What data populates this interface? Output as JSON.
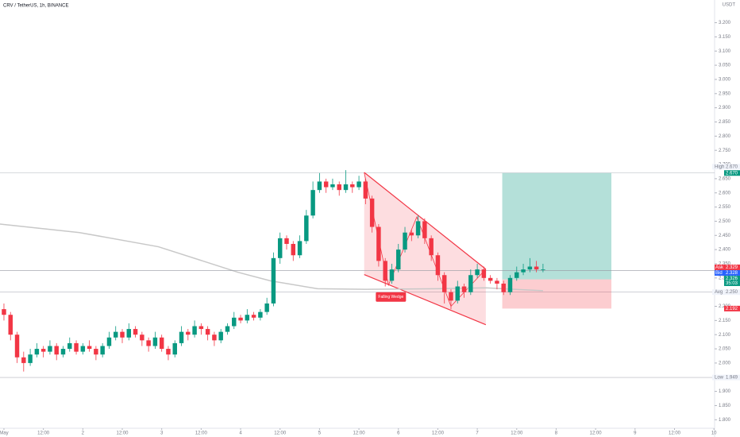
{
  "chart_data": {
    "type": "candlestick",
    "title": "CRV / TetherUS, 1h, BINANCE",
    "currency": "USDT",
    "xlim": [
      -0.6,
      108.1
    ],
    "ylim": [
      1.77,
      3.28
    ],
    "xticks": [
      {
        "value": 0,
        "label": "May"
      },
      {
        "value": 6,
        "label": "12:00"
      },
      {
        "value": 12,
        "label": "2"
      },
      {
        "value": 18,
        "label": "12:00"
      },
      {
        "value": 24,
        "label": "3"
      },
      {
        "value": 30,
        "label": "12:00"
      },
      {
        "value": 36,
        "label": "4"
      },
      {
        "value": 42,
        "label": "12:00"
      },
      {
        "value": 48,
        "label": "5"
      },
      {
        "value": 54,
        "label": "12:00"
      },
      {
        "value": 60,
        "label": "6"
      },
      {
        "value": 66,
        "label": "12:00"
      },
      {
        "value": 72,
        "label": "7"
      },
      {
        "value": 78,
        "label": "12:00"
      },
      {
        "value": 84,
        "label": "8"
      },
      {
        "value": 90,
        "label": "12:00"
      },
      {
        "value": 96,
        "label": "9"
      },
      {
        "value": 102,
        "label": "12:00"
      },
      {
        "value": 108,
        "label": "10"
      }
    ],
    "yticks": [
      {
        "value": 1.8,
        "label": "1.800"
      },
      {
        "value": 1.85,
        "label": "1.850"
      },
      {
        "value": 1.9,
        "label": "1.900"
      },
      {
        "value": 1.95,
        "label": "1.950"
      },
      {
        "value": 2.0,
        "label": "2.000"
      },
      {
        "value": 2.05,
        "label": "2.050"
      },
      {
        "value": 2.1,
        "label": "2.100"
      },
      {
        "value": 2.15,
        "label": "2.150"
      },
      {
        "value": 2.2,
        "label": "2.200"
      },
      {
        "value": 2.25,
        "label": "2.250"
      },
      {
        "value": 2.3,
        "label": "2.300"
      },
      {
        "value": 2.35,
        "label": "2.350"
      },
      {
        "value": 2.4,
        "label": "2.400"
      },
      {
        "value": 2.45,
        "label": "2.450"
      },
      {
        "value": 2.5,
        "label": "2.500"
      },
      {
        "value": 2.55,
        "label": "2.550"
      },
      {
        "value": 2.6,
        "label": "2.600"
      },
      {
        "value": 2.65,
        "label": "2.650"
      },
      {
        "value": 2.7,
        "label": "2.700"
      },
      {
        "value": 2.75,
        "label": "2.750"
      },
      {
        "value": 2.8,
        "label": "2.800"
      },
      {
        "value": 2.85,
        "label": "2.850"
      },
      {
        "value": 2.9,
        "label": "2.900"
      },
      {
        "value": 2.95,
        "label": "2.950"
      },
      {
        "value": 3.0,
        "label": "3.000"
      },
      {
        "value": 3.05,
        "label": "3.050"
      },
      {
        "value": 3.1,
        "label": "3.100"
      },
      {
        "value": 3.15,
        "label": "3.150"
      },
      {
        "value": 3.2,
        "label": "3.200"
      }
    ],
    "up_color": "#089981",
    "down_color": "#f23645",
    "candles": [
      [
        2.19,
        2.21,
        2.15,
        2.17
      ],
      [
        2.17,
        2.18,
        2.08,
        2.1
      ],
      [
        2.1,
        2.11,
        2.0,
        2.02
      ],
      [
        2.02,
        2.04,
        1.97,
        2.0
      ],
      [
        2.0,
        2.05,
        1.99,
        2.03
      ],
      [
        2.03,
        2.07,
        2.02,
        2.05
      ],
      [
        2.05,
        2.06,
        2.02,
        2.04
      ],
      [
        2.04,
        2.08,
        2.03,
        2.06
      ],
      [
        2.06,
        2.07,
        2.01,
        2.03
      ],
      [
        2.03,
        2.06,
        2.02,
        2.05
      ],
      [
        2.05,
        2.09,
        2.04,
        2.07
      ],
      [
        2.07,
        2.08,
        2.03,
        2.04
      ],
      [
        2.04,
        2.07,
        2.03,
        2.06
      ],
      [
        2.06,
        2.08,
        2.04,
        2.05
      ],
      [
        2.05,
        2.06,
        2.01,
        2.03
      ],
      [
        2.03,
        2.07,
        2.02,
        2.06
      ],
      [
        2.06,
        2.11,
        2.05,
        2.09
      ],
      [
        2.09,
        2.13,
        2.08,
        2.11
      ],
      [
        2.11,
        2.12,
        2.07,
        2.09
      ],
      [
        2.09,
        2.14,
        2.08,
        2.12
      ],
      [
        2.12,
        2.13,
        2.09,
        2.1
      ],
      [
        2.1,
        2.11,
        2.06,
        2.08
      ],
      [
        2.08,
        2.09,
        2.04,
        2.06
      ],
      [
        2.06,
        2.11,
        2.05,
        2.09
      ],
      [
        2.09,
        2.1,
        2.04,
        2.05
      ],
      [
        2.05,
        2.06,
        2.01,
        2.03
      ],
      [
        2.03,
        2.08,
        2.02,
        2.07
      ],
      [
        2.07,
        2.13,
        2.06,
        2.11
      ],
      [
        2.11,
        2.12,
        2.08,
        2.1
      ],
      [
        2.1,
        2.15,
        2.09,
        2.13
      ],
      [
        2.13,
        2.14,
        2.1,
        2.12
      ],
      [
        2.12,
        2.13,
        2.08,
        2.1
      ],
      [
        2.1,
        2.11,
        2.06,
        2.08
      ],
      [
        2.08,
        2.12,
        2.07,
        2.11
      ],
      [
        2.11,
        2.14,
        2.1,
        2.13
      ],
      [
        2.13,
        2.18,
        2.12,
        2.16
      ],
      [
        2.16,
        2.17,
        2.14,
        2.15
      ],
      [
        2.15,
        2.19,
        2.14,
        2.17
      ],
      [
        2.17,
        2.18,
        2.15,
        2.16
      ],
      [
        2.16,
        2.19,
        2.15,
        2.18
      ],
      [
        2.18,
        2.23,
        2.17,
        2.21
      ],
      [
        2.21,
        2.39,
        2.2,
        2.37
      ],
      [
        2.37,
        2.46,
        2.35,
        2.44
      ],
      [
        2.44,
        2.45,
        2.4,
        2.42
      ],
      [
        2.42,
        2.43,
        2.36,
        2.38
      ],
      [
        2.38,
        2.45,
        2.37,
        2.43
      ],
      [
        2.43,
        2.54,
        2.42,
        2.52
      ],
      [
        2.52,
        2.64,
        2.51,
        2.61
      ],
      [
        2.61,
        2.67,
        2.6,
        2.64
      ],
      [
        2.64,
        2.65,
        2.6,
        2.62
      ],
      [
        2.62,
        2.65,
        2.61,
        2.63
      ],
      [
        2.63,
        2.64,
        2.59,
        2.61
      ],
      [
        2.61,
        2.68,
        2.6,
        2.63
      ],
      [
        2.63,
        2.64,
        2.6,
        2.62
      ],
      [
        2.62,
        2.66,
        2.61,
        2.64
      ],
      [
        2.64,
        2.65,
        2.56,
        2.58
      ],
      [
        2.58,
        2.59,
        2.46,
        2.48
      ],
      [
        2.48,
        2.49,
        2.34,
        2.36
      ],
      [
        2.36,
        2.37,
        2.27,
        2.29
      ],
      [
        2.29,
        2.35,
        2.28,
        2.33
      ],
      [
        2.33,
        2.42,
        2.32,
        2.4
      ],
      [
        2.4,
        2.48,
        2.39,
        2.46
      ],
      [
        2.46,
        2.47,
        2.43,
        2.45
      ],
      [
        2.45,
        2.52,
        2.44,
        2.5
      ],
      [
        2.5,
        2.51,
        2.42,
        2.44
      ],
      [
        2.44,
        2.45,
        2.36,
        2.38
      ],
      [
        2.38,
        2.39,
        2.29,
        2.31
      ],
      [
        2.31,
        2.32,
        2.21,
        2.25
      ],
      [
        2.25,
        2.26,
        2.19,
        2.22
      ],
      [
        2.22,
        2.29,
        2.21,
        2.27
      ],
      [
        2.27,
        2.28,
        2.23,
        2.25
      ],
      [
        2.25,
        2.33,
        2.24,
        2.31
      ],
      [
        2.31,
        2.35,
        2.3,
        2.33
      ],
      [
        2.33,
        2.34,
        2.29,
        2.3
      ],
      [
        2.3,
        2.31,
        2.28,
        2.29
      ],
      [
        2.29,
        2.3,
        2.26,
        2.28
      ],
      [
        2.28,
        2.29,
        2.24,
        2.25
      ],
      [
        2.25,
        2.31,
        2.24,
        2.3
      ],
      [
        2.3,
        2.34,
        2.29,
        2.32
      ],
      [
        2.32,
        2.35,
        2.31,
        2.33
      ],
      [
        2.33,
        2.37,
        2.32,
        2.34
      ],
      [
        2.34,
        2.36,
        2.32,
        2.33
      ],
      [
        2.33,
        2.35,
        2.32,
        2.33
      ]
    ],
    "moving_average": {
      "color": "#c8c8c8",
      "x": [
        -0.6,
        11.5,
        23.5,
        35.6,
        40.5,
        47.7,
        55,
        66,
        73.3,
        82
      ],
      "values": [
        2.49,
        2.46,
        2.41,
        2.32,
        2.29,
        2.262,
        2.26,
        2.262,
        2.265,
        2.255
      ]
    },
    "levels": [
      {
        "name": "High",
        "value": 2.67,
        "label": "2.670"
      },
      {
        "name": "Avg",
        "value": 2.25,
        "label": "2.250"
      },
      {
        "name": "Low",
        "value": 1.949,
        "label": "1.949"
      }
    ],
    "quotes": [
      {
        "name": "Ask",
        "value": 2.329,
        "label": "2.329",
        "color": "#f23645"
      },
      {
        "name": "Bid",
        "value": 2.328,
        "label": "2.328",
        "color": "#2962ff"
      }
    ],
    "last": {
      "value": 2.326,
      "label": "2.326",
      "countdown": "35:03",
      "color": "#089981"
    },
    "position": {
      "x": [
        75.8,
        92.4
      ],
      "entry": {
        "value": 2.295,
        "label": "2.295"
      },
      "target": {
        "value": 2.67,
        "label": "2.670"
      },
      "stop": {
        "value": 2.192,
        "label": "2.192"
      },
      "profit_color": "#089981",
      "loss_color": "#f23645"
    },
    "pattern": {
      "label": "Falling Wedge",
      "color": "#f23645",
      "upper": {
        "x": [
          54.8,
          73.3
        ],
        "values": [
          2.672,
          2.331
        ]
      },
      "lower": {
        "x": [
          54.8,
          73.3
        ],
        "values": [
          2.312,
          2.135
        ]
      },
      "zigzag": {
        "x": [
          54.8,
          58.5,
          62.8,
          68,
          73.3
        ],
        "values": [
          2.672,
          2.275,
          2.515,
          2.2,
          2.331
        ]
      }
    }
  }
}
